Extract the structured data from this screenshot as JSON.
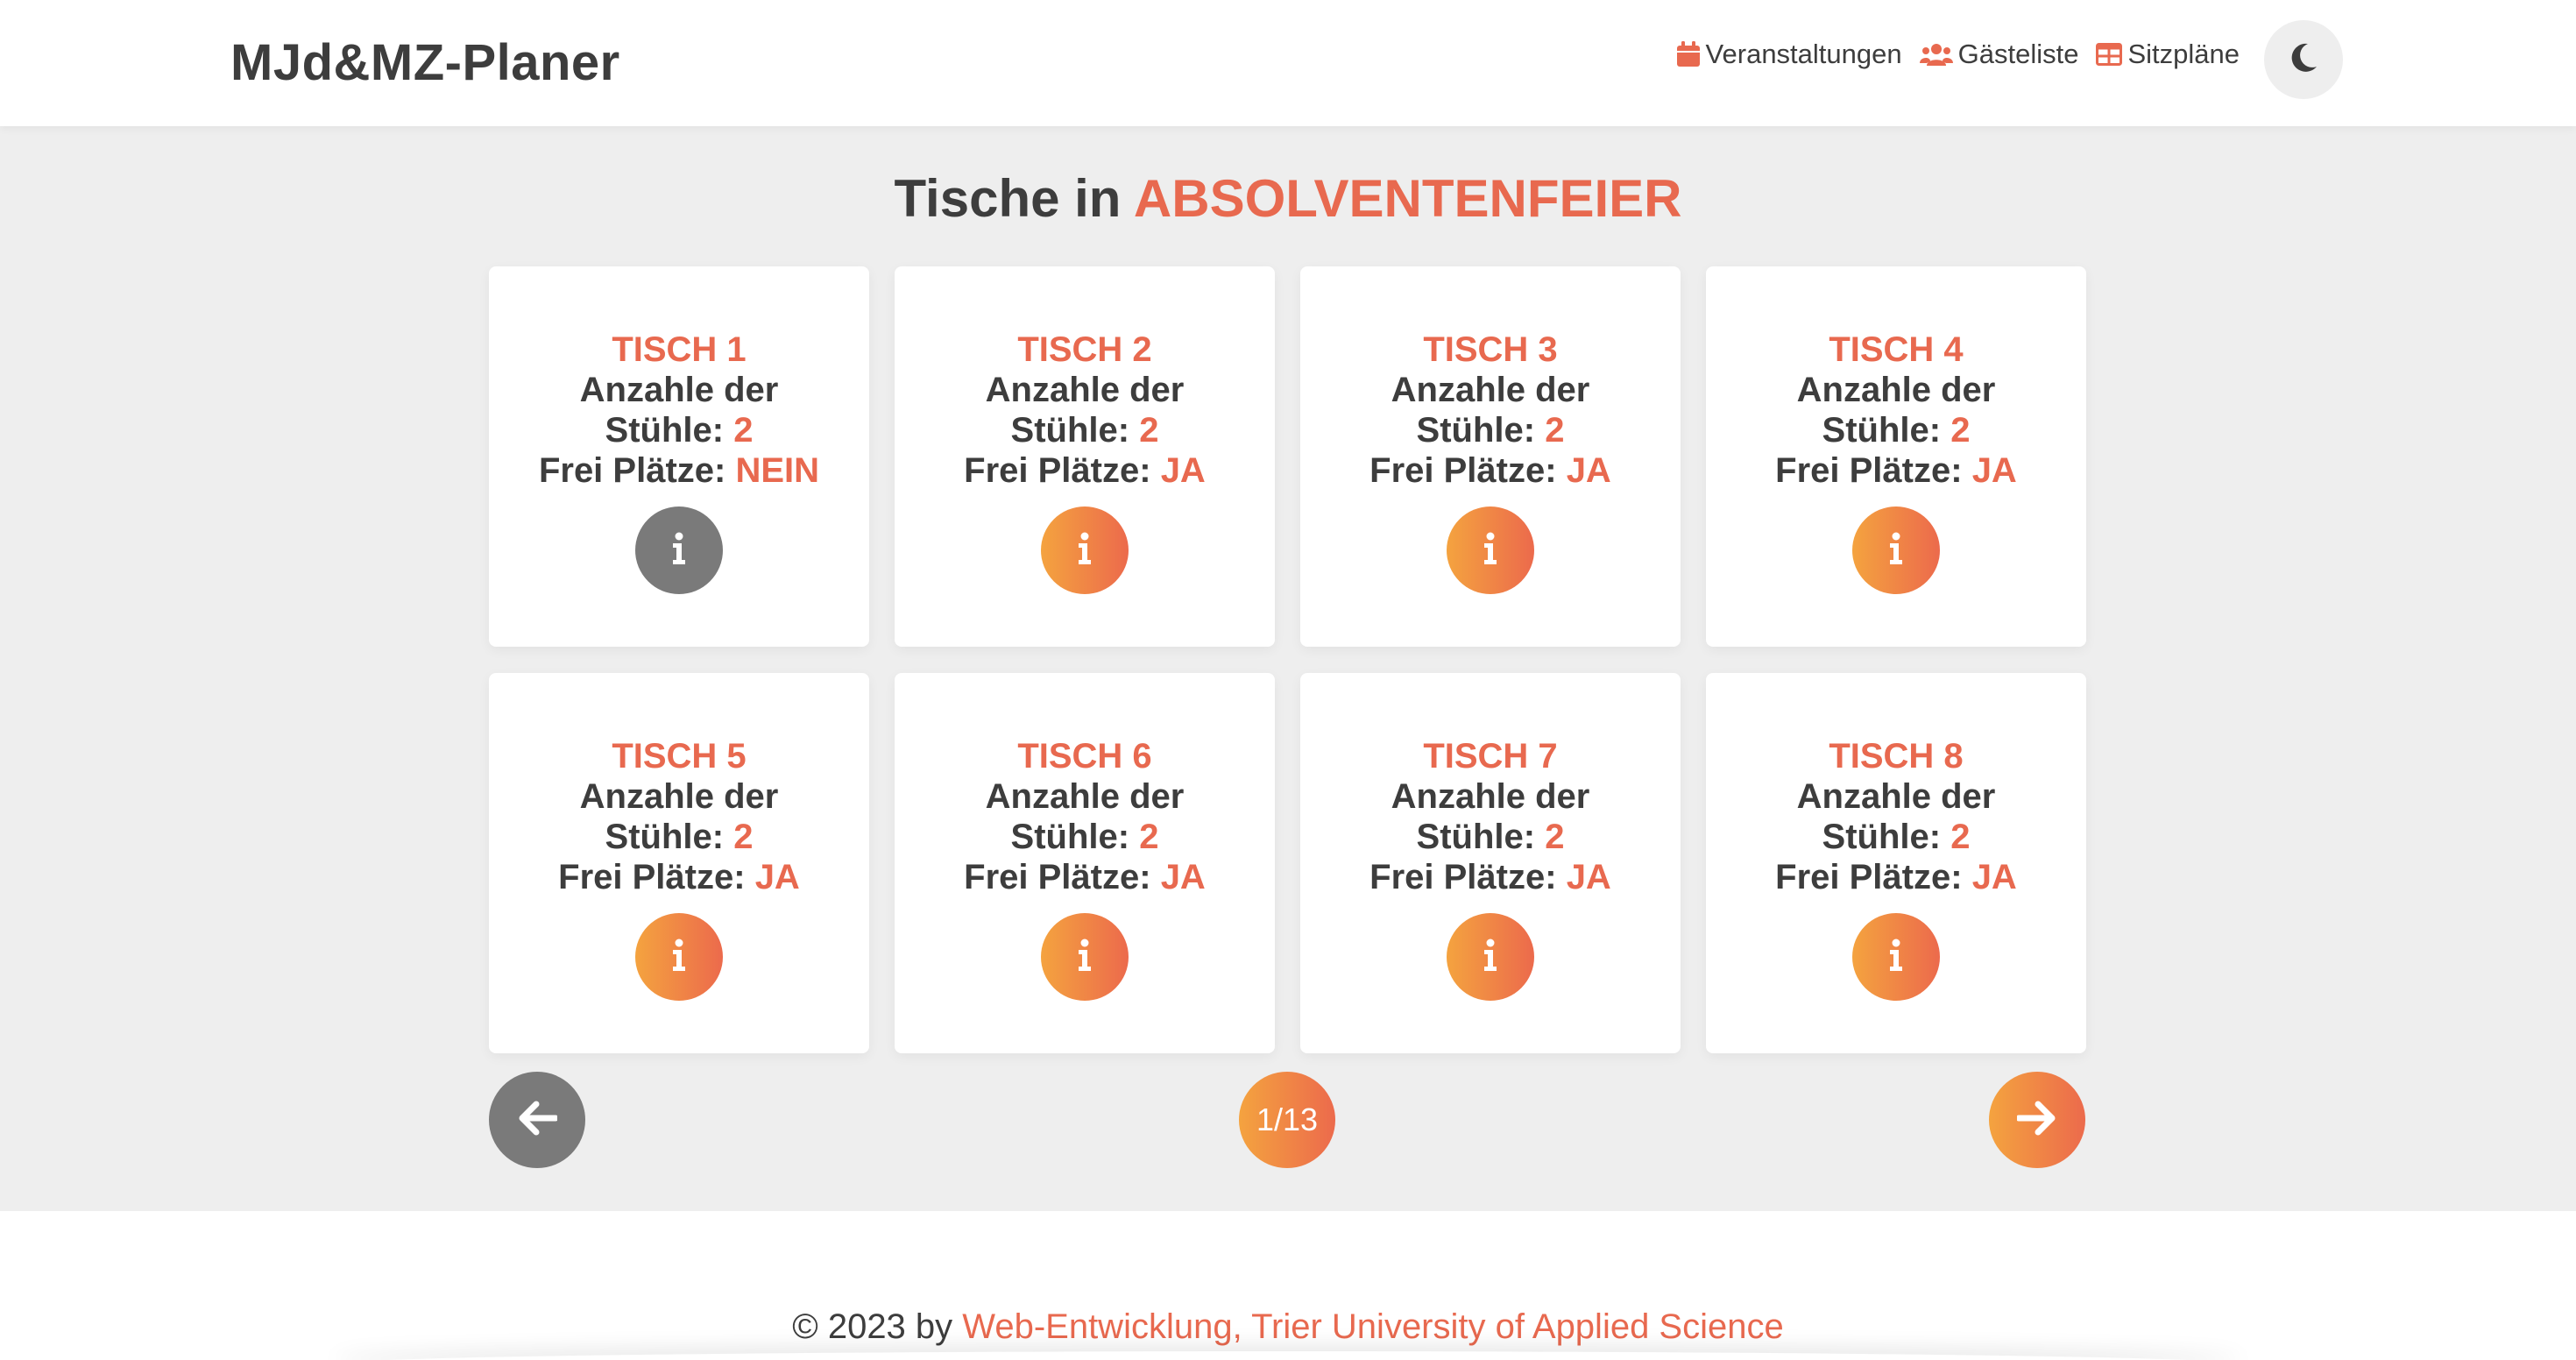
{
  "header": {
    "brand": "MJd&MZ-Planer",
    "nav": [
      {
        "label": "Veranstaltungen",
        "icon": "calendar-icon"
      },
      {
        "label": "Gästeliste",
        "icon": "users-icon"
      },
      {
        "label": "Sitzpläne",
        "icon": "table-icon"
      }
    ],
    "theme_toggle_icon": "moon-icon"
  },
  "main": {
    "title_prefix": "Tische in",
    "event_name": "ABSOLVENTENFEIER",
    "labels": {
      "chairs_line1": "Anzahle der",
      "chairs_line2": "Stühle:",
      "free": "Frei Plätze:"
    },
    "tables": [
      {
        "name": "TISCH 1",
        "chairs": "2",
        "free": "NEIN",
        "available": false
      },
      {
        "name": "TISCH 2",
        "chairs": "2",
        "free": "JA",
        "available": true
      },
      {
        "name": "TISCH 3",
        "chairs": "2",
        "free": "JA",
        "available": true
      },
      {
        "name": "TISCH 4",
        "chairs": "2",
        "free": "JA",
        "available": true
      },
      {
        "name": "TISCH 5",
        "chairs": "2",
        "free": "JA",
        "available": true
      },
      {
        "name": "TISCH 6",
        "chairs": "2",
        "free": "JA",
        "available": true
      },
      {
        "name": "TISCH 7",
        "chairs": "2",
        "free": "JA",
        "available": true
      },
      {
        "name": "TISCH 8",
        "chairs": "2",
        "free": "JA",
        "available": true
      }
    ],
    "pagination": {
      "current": "1/13"
    }
  },
  "footer": {
    "prefix": "© 2023 by",
    "link": "Web-Entwicklung, Trier University of Applied Science"
  },
  "colors": {
    "accent": "#e8694f",
    "gradient_start": "#f4a33f",
    "gradient_end": "#ec6a4c",
    "disabled": "#7a7a7a",
    "text": "#3d3d3d",
    "background": "#eeeeee"
  }
}
